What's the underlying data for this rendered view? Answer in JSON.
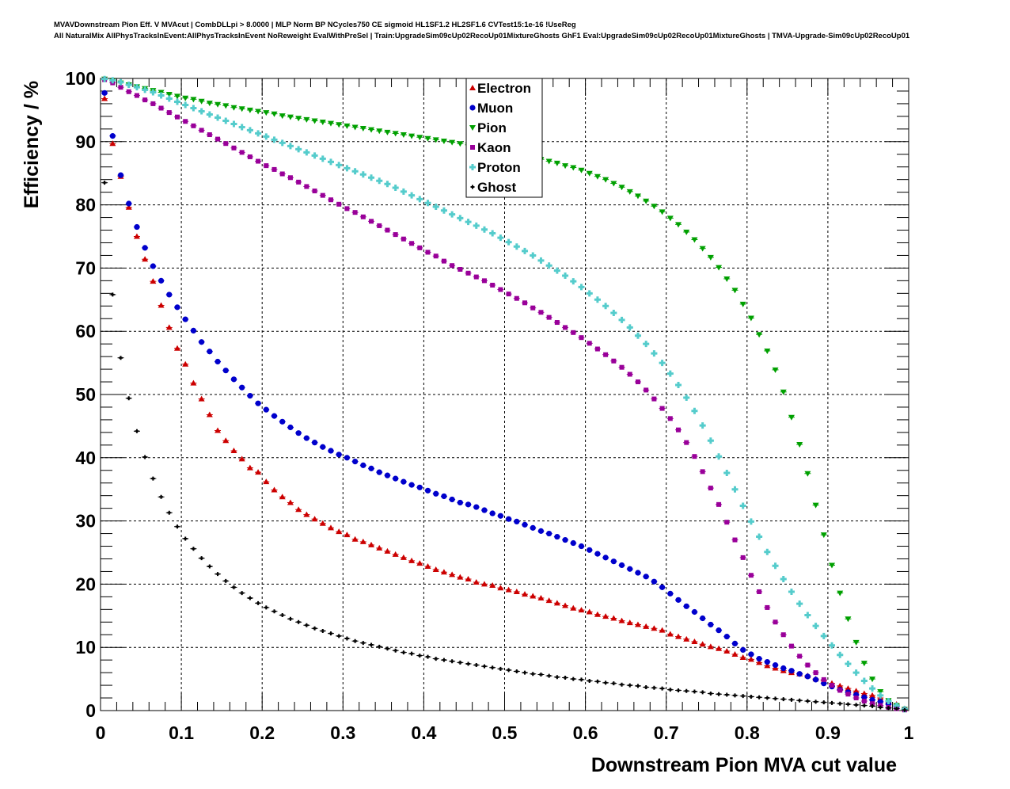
{
  "header": {
    "title_line1": "MVAVDownstream Pion Eff. V MVAcut | CombDLLpi > 8.0000 | MLP Norm BP NCycles750 CE sigmoid HL1SF1.2 HL2SF1.6 CVTest15:1e-16 !UseReg",
    "title_line2": "All NaturalMix AllPhysTracksInEvent:AllPhysTracksInEvent NoReweight EvalWithPreSel | Train:UpgradeSim09cUp02RecoUp01MixtureGhosts GhF1 Eval:UpgradeSim09cUp02RecoUp01MixtureGhosts | TMVA-Upgrade-Sim09cUp02RecoUp01"
  },
  "chart_data": {
    "type": "scatter",
    "xlabel": "Downstream Pion MVA cut value",
    "ylabel": "Efficiency / %",
    "xlim": [
      0,
      1
    ],
    "ylim": [
      0,
      100
    ],
    "x_ticks": [
      "0",
      "0.1",
      "0.2",
      "0.3",
      "0.4",
      "0.5",
      "0.6",
      "0.7",
      "0.8",
      "0.9",
      "1"
    ],
    "y_ticks": [
      "0",
      "10",
      "20",
      "30",
      "40",
      "50",
      "60",
      "70",
      "80",
      "90",
      "100"
    ],
    "grid": true,
    "legend_position": "top-center",
    "x": [
      0.005,
      0.015,
      0.025,
      0.035,
      0.045,
      0.055,
      0.065,
      0.075,
      0.085,
      0.095,
      0.105,
      0.115,
      0.125,
      0.135,
      0.145,
      0.155,
      0.165,
      0.175,
      0.185,
      0.195,
      0.205,
      0.215,
      0.225,
      0.235,
      0.245,
      0.255,
      0.265,
      0.275,
      0.285,
      0.295,
      0.305,
      0.315,
      0.325,
      0.335,
      0.345,
      0.355,
      0.365,
      0.375,
      0.385,
      0.395,
      0.405,
      0.415,
      0.425,
      0.435,
      0.445,
      0.455,
      0.465,
      0.475,
      0.485,
      0.495,
      0.505,
      0.515,
      0.525,
      0.535,
      0.545,
      0.555,
      0.565,
      0.575,
      0.585,
      0.595,
      0.605,
      0.615,
      0.625,
      0.635,
      0.645,
      0.655,
      0.665,
      0.675,
      0.685,
      0.695,
      0.705,
      0.715,
      0.725,
      0.735,
      0.745,
      0.755,
      0.765,
      0.775,
      0.785,
      0.795,
      0.805,
      0.815,
      0.825,
      0.835,
      0.845,
      0.855,
      0.865,
      0.875,
      0.885,
      0.895,
      0.905,
      0.915,
      0.925,
      0.935,
      0.945,
      0.955,
      0.965,
      0.975,
      0.985,
      0.995
    ],
    "series": [
      {
        "name": "Electron",
        "color": "#cc0000",
        "marker": "triangle-up",
        "values": [
          96.8,
          89.7,
          84.5,
          79.6,
          75.0,
          71.4,
          67.9,
          64.1,
          60.6,
          57.3,
          54.8,
          51.8,
          49.3,
          46.8,
          44.3,
          42.7,
          41.1,
          39.8,
          38.4,
          37.7,
          36.2,
          34.9,
          33.8,
          32.9,
          31.8,
          31.0,
          30.3,
          29.6,
          28.9,
          28.3,
          27.8,
          27.1,
          26.7,
          26.2,
          25.7,
          25.2,
          24.7,
          24.2,
          23.7,
          23.3,
          22.8,
          22.3,
          21.9,
          21.5,
          21.1,
          20.8,
          20.3,
          20.0,
          19.8,
          19.4,
          19.1,
          18.8,
          18.4,
          18.1,
          17.8,
          17.4,
          17.0,
          16.6,
          16.2,
          15.9,
          15.6,
          15.2,
          14.9,
          14.6,
          14.2,
          13.9,
          13.6,
          13.3,
          13.0,
          12.7,
          12.1,
          11.7,
          11.3,
          10.9,
          10.5,
          10.1,
          9.8,
          9.4,
          8.9,
          8.4,
          8.1,
          7.6,
          7.1,
          6.7,
          6.3,
          6.0,
          5.8,
          5.5,
          5.0,
          4.7,
          4.3,
          3.9,
          3.5,
          3.1,
          2.7,
          2.4,
          2.0,
          1.5,
          1.0,
          0.3
        ]
      },
      {
        "name": "Muon",
        "color": "#0000cc",
        "marker": "circle",
        "values": [
          97.7,
          90.9,
          84.7,
          80.2,
          76.5,
          73.2,
          70.3,
          68.0,
          65.8,
          63.8,
          61.9,
          60.1,
          58.3,
          56.8,
          55.2,
          53.8,
          52.4,
          51.1,
          49.8,
          48.6,
          47.6,
          46.6,
          45.7,
          44.8,
          43.9,
          43.1,
          42.4,
          41.7,
          41.1,
          40.5,
          40.0,
          39.4,
          38.8,
          38.3,
          37.7,
          37.2,
          36.7,
          36.2,
          35.7,
          35.3,
          34.8,
          34.3,
          33.9,
          33.4,
          32.9,
          32.6,
          32.2,
          31.7,
          31.2,
          30.8,
          30.3,
          29.9,
          29.4,
          28.9,
          28.4,
          28.0,
          27.5,
          27.0,
          26.5,
          26.0,
          25.4,
          24.8,
          24.2,
          23.6,
          23.0,
          22.4,
          21.8,
          21.2,
          20.4,
          19.5,
          18.5,
          17.5,
          16.5,
          15.6,
          14.6,
          13.6,
          12.7,
          11.7,
          10.6,
          9.6,
          8.9,
          8.2,
          7.7,
          7.2,
          6.7,
          6.3,
          5.8,
          5.4,
          4.9,
          4.3,
          3.8,
          3.3,
          2.9,
          2.5,
          2.1,
          1.7,
          1.4,
          1.0,
          0.6,
          0.2
        ]
      },
      {
        "name": "Pion",
        "color": "#00a000",
        "marker": "triangle-down",
        "values": [
          99.9,
          99.6,
          99.3,
          99.0,
          98.7,
          98.4,
          98.1,
          97.8,
          97.5,
          97.2,
          96.9,
          96.7,
          96.4,
          96.1,
          95.9,
          95.7,
          95.4,
          95.2,
          95.0,
          94.8,
          94.6,
          94.4,
          94.1,
          93.9,
          93.7,
          93.5,
          93.3,
          93.1,
          92.9,
          92.7,
          92.5,
          92.3,
          92.1,
          91.9,
          91.7,
          91.5,
          91.3,
          91.1,
          90.9,
          90.7,
          90.5,
          90.3,
          90.1,
          89.9,
          89.7,
          89.5,
          89.3,
          89.1,
          88.9,
          88.7,
          88.4,
          88.1,
          87.8,
          87.5,
          87.2,
          86.9,
          86.6,
          86.2,
          85.9,
          85.5,
          85.0,
          84.5,
          84.0,
          83.4,
          82.8,
          82.1,
          81.4,
          80.6,
          79.8,
          78.9,
          77.9,
          76.9,
          75.7,
          74.5,
          73.1,
          71.7,
          70.1,
          68.3,
          66.5,
          64.3,
          62.1,
          59.5,
          56.9,
          53.9,
          50.4,
          46.4,
          42.1,
          37.5,
          32.5,
          27.8,
          23.0,
          18.6,
          14.5,
          10.8,
          7.5,
          5.0,
          3.0,
          1.6,
          0.8,
          0.2
        ]
      },
      {
        "name": "Kaon",
        "color": "#990099",
        "marker": "square",
        "values": [
          99.8,
          99.3,
          98.6,
          97.9,
          97.3,
          96.6,
          96.0,
          95.3,
          94.6,
          93.9,
          93.2,
          92.5,
          91.8,
          91.1,
          90.4,
          89.7,
          89.0,
          88.3,
          87.6,
          86.9,
          86.2,
          85.6,
          84.9,
          84.3,
          83.6,
          82.9,
          82.2,
          81.5,
          80.8,
          80.1,
          79.4,
          78.8,
          78.1,
          77.4,
          76.7,
          76.0,
          75.3,
          74.6,
          73.9,
          73.2,
          72.5,
          71.9,
          71.1,
          70.4,
          69.8,
          69.2,
          68.6,
          68.0,
          67.3,
          66.6,
          65.9,
          65.2,
          64.5,
          63.7,
          63.0,
          62.2,
          61.4,
          60.6,
          59.8,
          59.0,
          58.1,
          57.2,
          56.3,
          55.3,
          54.3,
          53.2,
          52.0,
          50.7,
          49.3,
          47.8,
          46.2,
          44.4,
          42.4,
          40.2,
          37.8,
          35.2,
          32.6,
          29.8,
          27.0,
          24.2,
          21.4,
          18.8,
          16.3,
          14.0,
          12.0,
          10.2,
          8.6,
          7.2,
          6.0,
          4.9,
          4.0,
          3.2,
          2.6,
          2.0,
          1.5,
          1.1,
          0.8,
          0.5,
          0.3,
          0.1
        ]
      },
      {
        "name": "Proton",
        "color": "#55cccc",
        "marker": "cross",
        "values": [
          99.9,
          99.7,
          99.4,
          99.0,
          98.6,
          98.2,
          97.8,
          97.3,
          96.8,
          96.3,
          95.8,
          95.3,
          94.8,
          94.3,
          93.8,
          93.3,
          92.8,
          92.3,
          91.8,
          91.3,
          90.8,
          90.3,
          89.8,
          89.3,
          88.8,
          88.3,
          87.8,
          87.3,
          86.8,
          86.3,
          85.8,
          85.3,
          84.8,
          84.3,
          83.8,
          83.3,
          82.7,
          82.1,
          81.5,
          80.9,
          80.3,
          79.7,
          79.1,
          78.5,
          77.9,
          77.3,
          76.7,
          76.1,
          75.5,
          74.8,
          74.1,
          73.4,
          72.7,
          72.0,
          71.2,
          70.4,
          69.6,
          68.8,
          67.9,
          67.0,
          66.0,
          65.0,
          64.0,
          62.9,
          61.8,
          60.6,
          59.3,
          58.0,
          56.5,
          55.0,
          53.3,
          51.5,
          49.5,
          47.4,
          45.1,
          42.7,
          40.2,
          37.6,
          35.0,
          32.4,
          29.9,
          27.5,
          25.1,
          22.9,
          20.8,
          18.8,
          16.9,
          15.1,
          13.4,
          11.8,
          10.3,
          8.8,
          7.4,
          6.0,
          4.7,
          3.5,
          2.4,
          1.5,
          0.8,
          0.2
        ]
      },
      {
        "name": "Ghost",
        "color": "#000000",
        "marker": "small-cross",
        "values": [
          83.5,
          65.8,
          55.8,
          49.4,
          44.2,
          40.1,
          36.7,
          33.8,
          31.3,
          29.1,
          27.2,
          25.6,
          24.1,
          22.8,
          21.6,
          20.5,
          19.5,
          18.6,
          17.8,
          17.0,
          16.3,
          15.7,
          15.1,
          14.5,
          14.0,
          13.5,
          13.0,
          12.6,
          12.2,
          11.8,
          11.4,
          11.0,
          10.7,
          10.4,
          10.1,
          9.8,
          9.5,
          9.2,
          9.0,
          8.7,
          8.5,
          8.2,
          8.0,
          7.8,
          7.6,
          7.4,
          7.2,
          7.0,
          6.8,
          6.6,
          6.4,
          6.2,
          6.0,
          5.8,
          5.7,
          5.5,
          5.3,
          5.2,
          5.0,
          4.9,
          4.7,
          4.6,
          4.4,
          4.3,
          4.1,
          4.0,
          3.9,
          3.7,
          3.6,
          3.5,
          3.3,
          3.2,
          3.1,
          3.0,
          2.9,
          2.7,
          2.6,
          2.5,
          2.4,
          2.3,
          2.2,
          2.1,
          2.0,
          1.9,
          1.8,
          1.7,
          1.6,
          1.5,
          1.4,
          1.3,
          1.2,
          1.1,
          1.0,
          0.9,
          0.8,
          0.7,
          0.5,
          0.4,
          0.3,
          0.1
        ]
      }
    ]
  }
}
